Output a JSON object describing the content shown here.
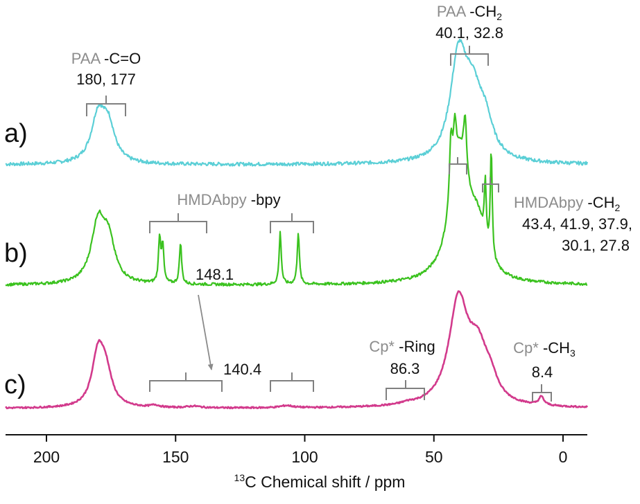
{
  "chart_data": {
    "type": "line",
    "title": "",
    "xlabel_sup": "13",
    "xlabel_main": "C Chemical shift / ppm",
    "xlim": [
      220,
      -10
    ],
    "x_reversed": true,
    "x_ticks": [
      200,
      150,
      100,
      50,
      0
    ],
    "x_tick_labels": [
      "200",
      "150",
      "100",
      "50",
      "0"
    ],
    "grid": false,
    "legend": "none",
    "series": [
      {
        "name": "a)",
        "color": "#5bcfd6",
        "peaks": [
          {
            "center": 180,
            "width": 3.2,
            "height": 0.75
          },
          {
            "center": 176,
            "width": 3.0,
            "height": 0.55
          },
          {
            "center": 40.5,
            "width": 3.8,
            "height": 1.55
          },
          {
            "center": 35,
            "width": 4.5,
            "height": 0.95
          },
          {
            "center": 30,
            "width": 3.5,
            "height": 0.45
          }
        ]
      },
      {
        "name": "b)",
        "color": "#3bc21f",
        "peaks": [
          {
            "center": 180,
            "width": 3.2,
            "height": 0.85
          },
          {
            "center": 176,
            "width": 3.0,
            "height": 0.55
          },
          {
            "center": 156.2,
            "width": 0.5,
            "height": 0.65
          },
          {
            "center": 155.0,
            "width": 0.5,
            "height": 0.55
          },
          {
            "center": 148.1,
            "width": 0.5,
            "height": 0.6
          },
          {
            "center": 109.5,
            "width": 0.5,
            "height": 0.75
          },
          {
            "center": 102.5,
            "width": 0.5,
            "height": 0.75
          },
          {
            "center": 40,
            "width": 4.5,
            "height": 1.8
          },
          {
            "center": 43.4,
            "width": 0.7,
            "height": 0.9
          },
          {
            "center": 41.9,
            "width": 0.7,
            "height": 0.7
          },
          {
            "center": 37.9,
            "width": 0.7,
            "height": 0.75
          },
          {
            "center": 30.1,
            "width": 0.45,
            "height": 0.85
          },
          {
            "center": 27.8,
            "width": 0.45,
            "height": 1.55
          },
          {
            "center": 33,
            "width": 3.5,
            "height": 0.6
          }
        ]
      },
      {
        "name": "c)",
        "color": "#d23a8c",
        "peaks": [
          {
            "center": 180,
            "width": 2.8,
            "height": 0.95
          },
          {
            "center": 177,
            "width": 2.8,
            "height": 0.55
          },
          {
            "center": 158,
            "width": 2.0,
            "height": 0.04
          },
          {
            "center": 143,
            "width": 3.0,
            "height": 0.03
          },
          {
            "center": 107,
            "width": 3.0,
            "height": 0.04
          },
          {
            "center": 40.5,
            "width": 4.5,
            "height": 1.85
          },
          {
            "center": 33,
            "width": 4.5,
            "height": 0.9
          },
          {
            "center": 28,
            "width": 3.0,
            "height": 0.3
          },
          {
            "center": 60,
            "width": 3.0,
            "height": 0.03
          },
          {
            "center": 8.4,
            "width": 1.2,
            "height": 0.15
          }
        ]
      }
    ],
    "annotations": {
      "a_cco_label": "PAA",
      "a_cco_group": " -C=O",
      "a_cco_values": "180, 177",
      "a_ch2_label": "PAA",
      "a_ch2_group": " -CH",
      "a_ch2_sub": "2",
      "a_ch2_values": "40.1, 32.8",
      "b_bpy_label": "HMDAbpy",
      "b_bpy_group": " -bpy",
      "b_148": "148.1",
      "b_ch2_label": "HMDAbpy",
      "b_ch2_group": " -CH",
      "b_ch2_sub": "2",
      "b_ch2_values1": "43.4, 41.9, 37.9,",
      "b_ch2_values2": "30.1, 27.8",
      "c_140": "140.4",
      "c_ring_label": "Cp*",
      "c_ring_group": " -Ring",
      "c_ring_value": "86.3",
      "c_ch3_label": "Cp*",
      "c_ch3_group": " -CH",
      "c_ch3_sub": "3",
      "c_ch3_value": "8.4"
    }
  }
}
